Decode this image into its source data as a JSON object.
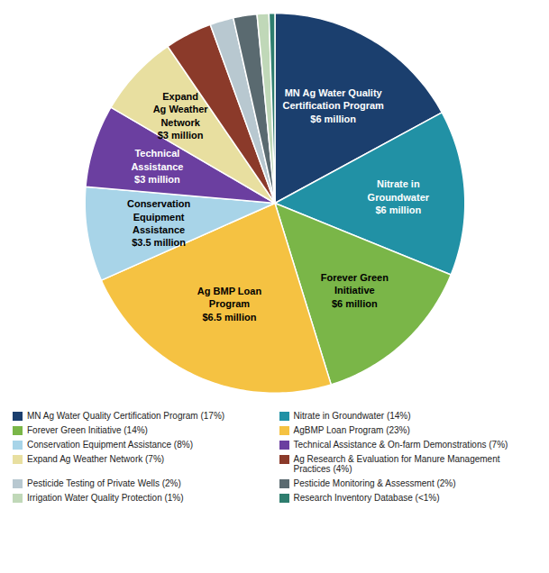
{
  "chart_data": {
    "type": "pie",
    "categories": [
      "MN Ag Water Quality Certification Program (17%)",
      "Nitrate in Groundwater (14%)",
      "Forever Green Initiative (14%)",
      "AgBMP Loan Program (23%)",
      "Conservation Equipment Assistance (8%)",
      "Technical Assistance & On-farm Demonstrations (7%)",
      "Expand Ag Weather Network (7%)",
      "Ag Research & Evaluation for Manure Management Practices (4%)",
      "Pesticide Testing of Private Wells (2%)",
      "Pesticide Monitoring & Assessment (2%)",
      "Irrigation Water Quality Protection (1%)",
      "Research Inventory Database (<1%)"
    ],
    "values": [
      17,
      14,
      14,
      23,
      8,
      7,
      7,
      4,
      2,
      2,
      1,
      0.5
    ],
    "labels": [
      "MN Ag Water Quality\nCertification Program\n$6 million",
      "Nitrate in\nGroundwater\n$6 million",
      "Forever Green\nInitiative\n$6 million",
      "Ag BMP Loan\nProgram\n$6.5 million",
      "Conservation\nEquipment\nAssistance\n$3.5 million",
      "Technical\nAssistance\n$3 million",
      "Expand\nAg Weather\nNetwork\n$3 million",
      null,
      null,
      null,
      null,
      null
    ],
    "colors": [
      "#1b3f6e",
      "#2191a5",
      "#7ab648",
      "#f5c242",
      "#a8d4e8",
      "#6b3fa0",
      "#e8dfa0",
      "#8b3a2a",
      "#b8c8d0",
      "#5a6a70",
      "#c0d8b8",
      "#2e7d6e"
    ],
    "legend": "lower left"
  }
}
